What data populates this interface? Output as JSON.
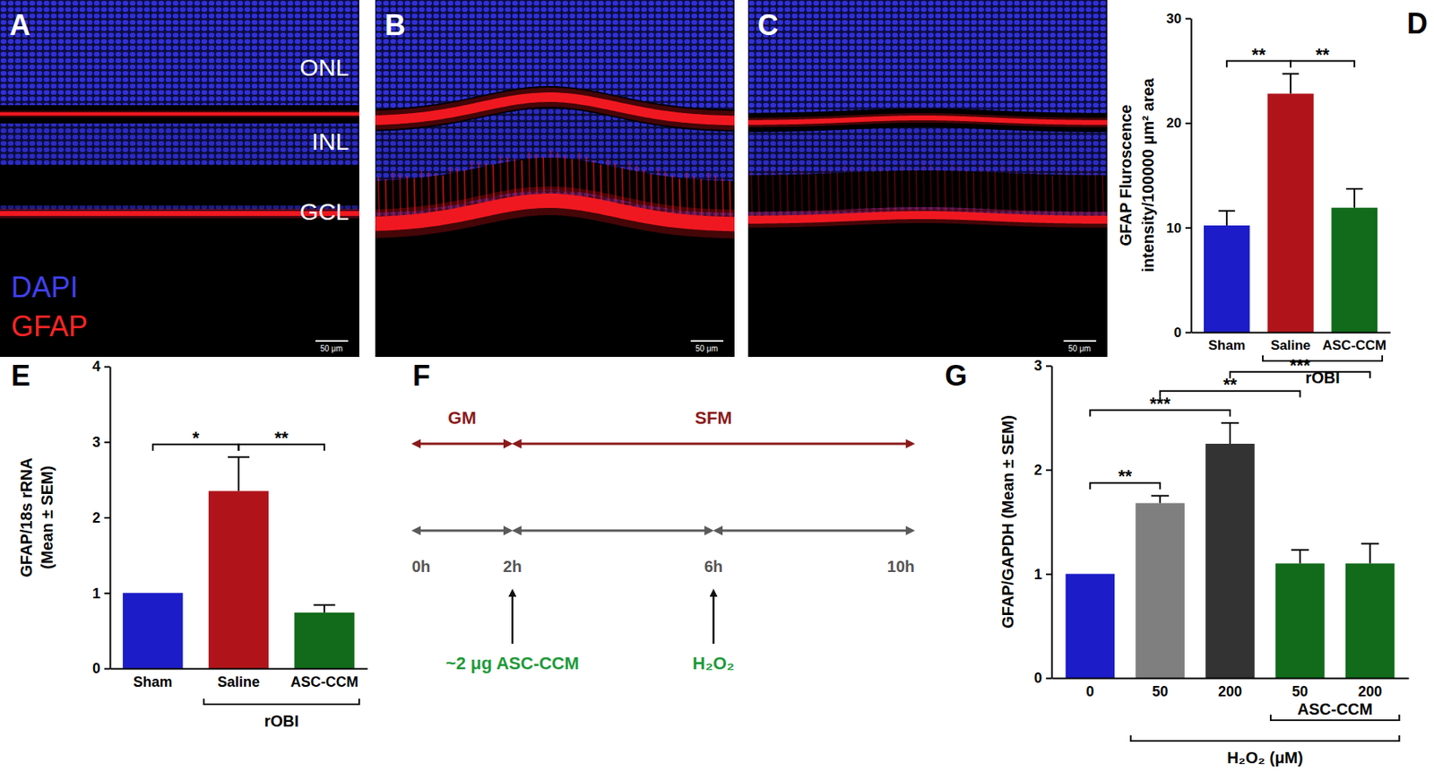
{
  "images": [
    {
      "title": "A",
      "layers": [
        "ONL",
        "INL",
        "GCL"
      ],
      "stains": [
        "DAPI",
        "GFAP"
      ],
      "scale_bar": "50 μm"
    },
    {
      "title": "B",
      "scale_bar": "50 μm"
    },
    {
      "title": "C",
      "scale_bar": "50 μm"
    }
  ],
  "timeline": {
    "title": "F",
    "phases": [
      {
        "name": "GM",
        "start": 0,
        "end": 2
      },
      {
        "name": "SFM",
        "start": 2,
        "end": 10
      }
    ],
    "times": [
      {
        "value": 0,
        "label": "0h"
      },
      {
        "value": 2,
        "label": "2h"
      },
      {
        "value": 6,
        "label": "6h"
      },
      {
        "value": 10,
        "label": "10h"
      }
    ],
    "events": [
      {
        "time": 2,
        "label": "~2 μg ASC-CCM"
      },
      {
        "time": 6,
        "label": "H₂O₂"
      }
    ]
  },
  "chart_data": [
    {
      "title": "D",
      "type": "bar",
      "ylabel": [
        "GFAP Fluroscence",
        "intensity/100000 μm² area"
      ],
      "categories": [
        "Sham",
        "Saline",
        "ASC-CCM"
      ],
      "values": [
        10.2,
        22.8,
        11.9
      ],
      "errors": [
        1.4,
        1.9,
        1.8
      ],
      "colors": [
        "#1c1cc8",
        "#b0141a",
        "#116b1a"
      ],
      "ylim": [
        0,
        30
      ],
      "yticks": [
        0,
        10,
        20,
        30
      ],
      "groups": [
        {
          "label": "rOBI",
          "from": 1,
          "to": 2
        }
      ],
      "annotations": [
        {
          "from": 0,
          "to": 1,
          "text": "**"
        },
        {
          "from": 1,
          "to": 2,
          "text": "**"
        }
      ]
    },
    {
      "title": "E",
      "type": "bar",
      "ylabel": [
        "GFAP/18s rRNA",
        "(Mean ± SEM)"
      ],
      "categories": [
        "Sham",
        "Saline",
        "ASC-CCM"
      ],
      "values": [
        1.0,
        2.35,
        0.74
      ],
      "errors": [
        0,
        0.45,
        0.1
      ],
      "colors": [
        "#1c1cc8",
        "#b0141a",
        "#116b1a"
      ],
      "ylim": [
        0,
        4
      ],
      "yticks": [
        0,
        1,
        2,
        3,
        4
      ],
      "groups": [
        {
          "label": "rOBI",
          "from": 1,
          "to": 2
        }
      ],
      "annotations": [
        {
          "from": 0,
          "to": 1,
          "text": "*"
        },
        {
          "from": 1,
          "to": 2,
          "text": "**"
        }
      ]
    },
    {
      "title": "G",
      "type": "bar",
      "ylabel": [
        "GFAP/GAPDH (Mean ± SEM)"
      ],
      "categories": [
        "0",
        "50",
        "200",
        "50",
        "200"
      ],
      "values": [
        1.0,
        1.68,
        2.25,
        1.1,
        1.1
      ],
      "errors": [
        0,
        0.07,
        0.2,
        0.13,
        0.19
      ],
      "colors": [
        "#1c1cc8",
        "#7f7f7f",
        "#333333",
        "#116b1a",
        "#116b1a"
      ],
      "ylim": [
        0,
        3
      ],
      "yticks": [
        0,
        1,
        2,
        3
      ],
      "groups": [
        {
          "label": "ASC-CCM",
          "from": 3,
          "to": 4
        },
        {
          "label": "H₂O₂ (μM)",
          "from": 1,
          "to": 4
        }
      ],
      "annotations": [
        {
          "from": 0,
          "to": 1,
          "text": "**"
        },
        {
          "from": 0,
          "to": 2,
          "text": "***"
        },
        {
          "from": 1,
          "to": 3,
          "text": "**"
        },
        {
          "from": 2,
          "to": 4,
          "text": "***"
        }
      ]
    }
  ]
}
